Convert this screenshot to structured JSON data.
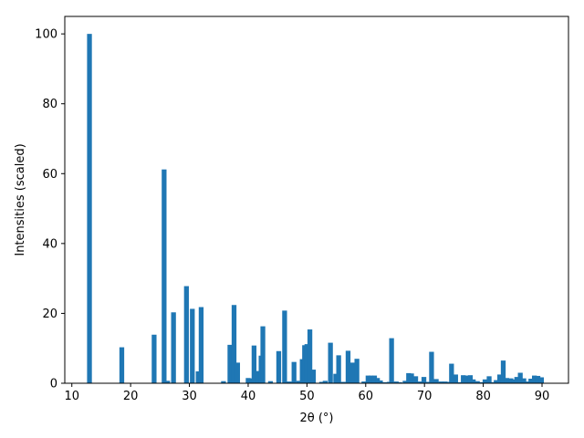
{
  "chart_data": {
    "type": "bar",
    "xlabel": "2θ (°)",
    "ylabel": "Intensities (scaled)",
    "xlim": [
      8.8,
      94.5
    ],
    "ylim": [
      0,
      105
    ],
    "xticks": [
      10,
      20,
      30,
      40,
      50,
      60,
      70,
      80,
      90
    ],
    "yticks": [
      0,
      20,
      40,
      60,
      80,
      100
    ],
    "bar_color": "#1f77b4",
    "x": [
      13.0,
      18.5,
      24.0,
      25.7,
      26.3,
      27.3,
      29.5,
      30.5,
      31.5,
      32.0,
      35.8,
      36.9,
      37.6,
      38.2,
      40.0,
      40.6,
      41.0,
      41.8,
      42.2,
      42.5,
      43.8,
      45.2,
      46.2,
      47.0,
      47.8,
      48.6,
      49.2,
      49.6,
      50.0,
      50.5,
      51.1,
      52.5,
      53.1,
      54.0,
      54.9,
      55.4,
      56.2,
      57.0,
      57.4,
      57.8,
      58.5,
      59.7,
      60.4,
      60.9,
      61.5,
      62.0,
      62.5,
      63.2,
      64.0,
      64.4,
      65.2,
      65.8,
      66.7,
      67.3,
      67.8,
      68.5,
      69.3,
      69.9,
      70.6,
      71.2,
      72.0,
      72.8,
      73.5,
      74.0,
      74.6,
      75.3,
      76.0,
      76.6,
      77.2,
      77.8,
      78.3,
      79.0,
      79.6,
      80.3,
      81.0,
      81.6,
      82.2,
      82.8,
      83.4,
      84.0,
      84.7,
      85.2,
      85.7,
      86.3,
      86.9,
      87.5,
      88.1,
      88.7,
      89.3,
      89.9
    ],
    "values": [
      100.0,
      10.3,
      13.9,
      61.2,
      0.7,
      20.3,
      27.8,
      21.3,
      3.4,
      21.8,
      0.6,
      11.0,
      22.4,
      5.9,
      1.5,
      1.4,
      10.8,
      3.5,
      7.9,
      16.3,
      0.6,
      9.2,
      20.8,
      0.5,
      6.1,
      0.7,
      6.9,
      10.9,
      11.2,
      15.4,
      3.9,
      0.4,
      0.7,
      11.6,
      2.7,
      8.0,
      0.4,
      9.3,
      4.4,
      5.9,
      7.0,
      0.5,
      2.2,
      2.2,
      2.2,
      1.5,
      0.8,
      0.3,
      0.4,
      12.9,
      0.5,
      0.3,
      0.7,
      2.9,
      2.8,
      2.0,
      0.5,
      1.8,
      0.4,
      9.0,
      1.2,
      0.5,
      0.5,
      0.4,
      5.6,
      2.5,
      0.3,
      2.3,
      2.2,
      2.3,
      1.1,
      0.6,
      0.3,
      1.1,
      2.0,
      0.3,
      0.9,
      2.5,
      6.5,
      1.5,
      1.4,
      1.1,
      1.8,
      3.0,
      1.4,
      0.5,
      1.3,
      2.2,
      2.1,
      1.7
    ]
  }
}
